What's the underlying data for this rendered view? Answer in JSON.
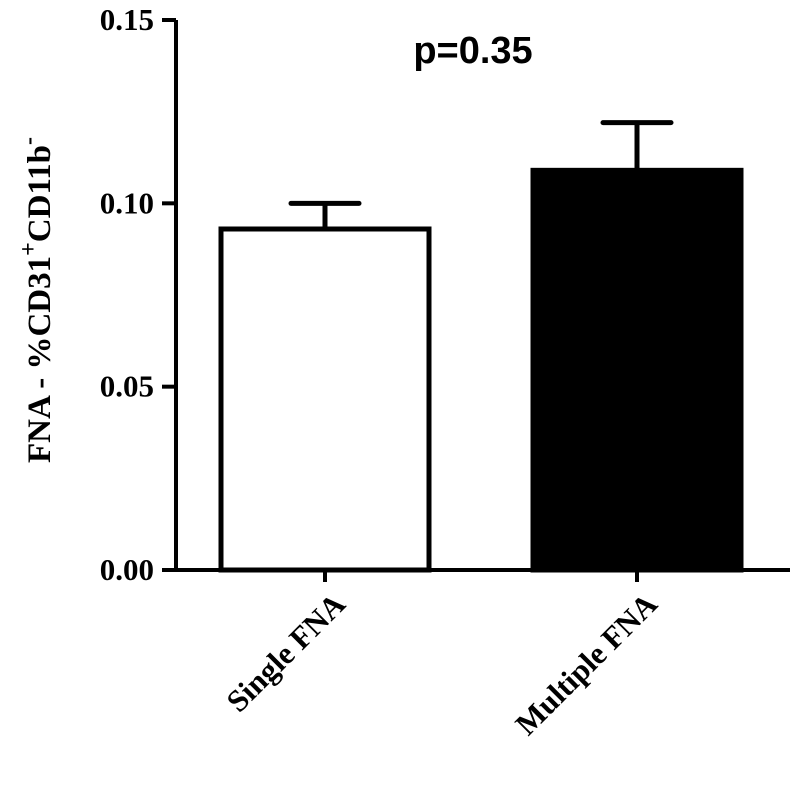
{
  "chart_data": {
    "type": "bar",
    "categories": [
      "Single FNA",
      "Multiple FNA"
    ],
    "values": [
      0.093,
      0.109
    ],
    "errors": [
      0.007,
      0.013
    ],
    "bar_fills": [
      "#ffffff",
      "#000000"
    ],
    "bar_stroke": "#000000",
    "ylabel": {
      "prefix": "FNA - %CD31",
      "sup1": "+",
      "middle": "CD11b",
      "sup2": "-"
    },
    "annotation": "p=0.35",
    "ylim": [
      0,
      0.15
    ],
    "yticks": [
      "0.00",
      "0.05",
      "0.10",
      "0.15"
    ],
    "ytick_values": [
      0,
      0.05,
      0.1,
      0.15
    ],
    "grid": false
  }
}
